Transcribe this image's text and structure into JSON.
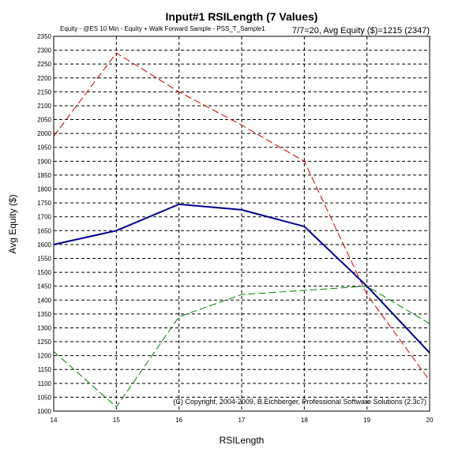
{
  "chart_data": {
    "type": "line",
    "title": "Input#1 RSILength (7 Values)",
    "subtitle": "Equity - @ES 10 Min - Equity + Walk Forward Sample - PSS_T_Sample1",
    "info": "7/7=20,   Avg Equity ($)=1215 (2347)",
    "copyright": "(C) Copyright, 2004-2009, B.Eichberger, Professional Software Solutions (2.3c7)",
    "xlabel": "RSILength",
    "ylabel": "Avg Equity ($)",
    "x": [
      14,
      15,
      16,
      17,
      18,
      19,
      20
    ],
    "xlim": [
      14,
      20
    ],
    "ylim": [
      1000,
      2350
    ],
    "ytick_step": 50,
    "grid": true,
    "series": [
      {
        "color": "#cc0000",
        "style": "dashed",
        "values": [
          1990,
          2290,
          2150,
          2030,
          1900,
          1420,
          1110
        ]
      },
      {
        "color": "#00008b",
        "style": "solid",
        "values": [
          1600,
          1650,
          1745,
          1725,
          1665,
          1450,
          1210
        ]
      },
      {
        "color": "#008000",
        "style": "dashed",
        "values": [
          1215,
          1015,
          1340,
          1420,
          1435,
          1450,
          1315
        ]
      }
    ]
  }
}
